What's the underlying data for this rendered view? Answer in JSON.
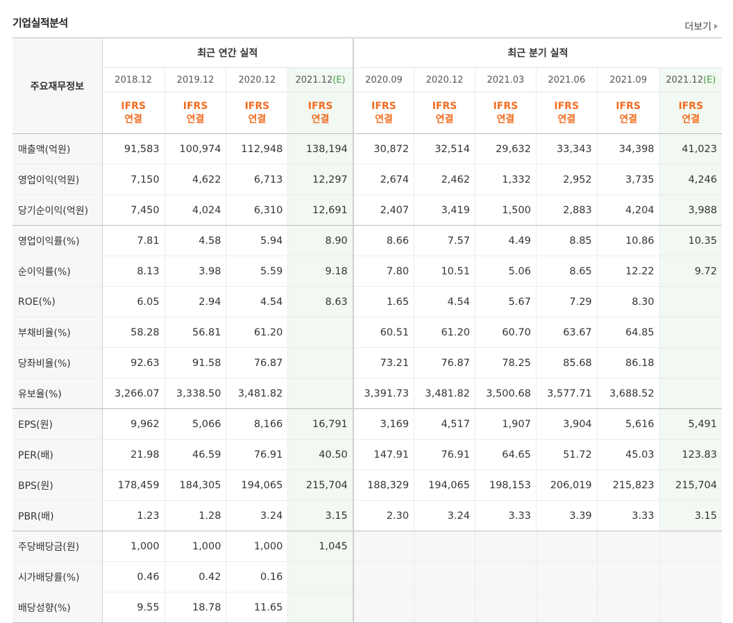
{
  "section_title": "기업실적분석",
  "more_label": "더보기",
  "row_header_label": "주요재무정보",
  "annual_header": "최근 연간 실적",
  "quarter_header": "최근 분기 실적",
  "ifrs_line1": "IFRS",
  "ifrs_line2": "연결",
  "annual_periods": [
    "2018.12",
    "2019.12",
    "2020.12",
    "2021.12"
  ],
  "quarter_periods": [
    "2020.09",
    "2020.12",
    "2021.03",
    "2021.06",
    "2021.09",
    "2021.12"
  ],
  "estimate_mark": "(E)",
  "rows": [
    {
      "label": "매출액(억원)",
      "values": [
        "91,583",
        "100,974",
        "112,948",
        "138,194",
        "30,872",
        "32,514",
        "29,632",
        "33,343",
        "34,398",
        "41,023"
      ]
    },
    {
      "label": "영업이익(억원)",
      "values": [
        "7,150",
        "4,622",
        "6,713",
        "12,297",
        "2,674",
        "2,462",
        "1,332",
        "2,952",
        "3,735",
        "4,246"
      ]
    },
    {
      "label": "당기순이익(억원)",
      "values": [
        "7,450",
        "4,024",
        "6,310",
        "12,691",
        "2,407",
        "3,419",
        "1,500",
        "2,883",
        "4,204",
        "3,988"
      ]
    },
    {
      "label": "영업이익률(%)",
      "values": [
        "7.81",
        "4.58",
        "5.94",
        "8.90",
        "8.66",
        "7.57",
        "4.49",
        "8.85",
        "10.86",
        "10.35"
      ]
    },
    {
      "label": "순이익률(%)",
      "values": [
        "8.13",
        "3.98",
        "5.59",
        "9.18",
        "7.80",
        "10.51",
        "5.06",
        "8.65",
        "12.22",
        "9.72"
      ]
    },
    {
      "label": "ROE(%)",
      "values": [
        "6.05",
        "2.94",
        "4.54",
        "8.63",
        "1.65",
        "4.54",
        "5.67",
        "7.29",
        "8.30",
        ""
      ]
    },
    {
      "label": "부채비율(%)",
      "values": [
        "58.28",
        "56.81",
        "61.20",
        "",
        "60.51",
        "61.20",
        "60.70",
        "63.67",
        "64.85",
        ""
      ]
    },
    {
      "label": "당좌비율(%)",
      "values": [
        "92.63",
        "91.58",
        "76.87",
        "",
        "73.21",
        "76.87",
        "78.25",
        "85.68",
        "86.18",
        ""
      ]
    },
    {
      "label": "유보율(%)",
      "values": [
        "3,266.07",
        "3,338.50",
        "3,481.82",
        "",
        "3,391.73",
        "3,481.82",
        "3,500.68",
        "3,577.71",
        "3,688.52",
        ""
      ]
    },
    {
      "label": "EPS(원)",
      "values": [
        "9,962",
        "5,066",
        "8,166",
        "16,791",
        "3,169",
        "4,517",
        "1,907",
        "3,904",
        "5,616",
        "5,491"
      ]
    },
    {
      "label": "PER(배)",
      "values": [
        "21.98",
        "46.59",
        "76.91",
        "40.50",
        "147.91",
        "76.91",
        "64.65",
        "51.72",
        "45.03",
        "123.83"
      ]
    },
    {
      "label": "BPS(원)",
      "values": [
        "178,459",
        "184,305",
        "194,065",
        "215,704",
        "188,329",
        "194,065",
        "198,153",
        "206,019",
        "215,823",
        "215,704"
      ]
    },
    {
      "label": "PBR(배)",
      "values": [
        "1.23",
        "1.28",
        "3.24",
        "3.15",
        "2.30",
        "3.24",
        "3.33",
        "3.39",
        "3.33",
        "3.15"
      ]
    },
    {
      "label": "주당배당금(원)",
      "values": [
        "1,000",
        "1,000",
        "1,000",
        "1,045",
        "",
        "",
        "",
        "",
        "",
        ""
      ]
    },
    {
      "label": "시가배당률(%)",
      "values": [
        "0.46",
        "0.42",
        "0.16",
        "",
        "",
        "",
        "",
        "",
        "",
        ""
      ]
    },
    {
      "label": "배당성향(%)",
      "values": [
        "9.55",
        "18.78",
        "11.65",
        "",
        "",
        "",
        "",
        "",
        "",
        ""
      ]
    }
  ],
  "group_end_rows": [
    2,
    8,
    12
  ],
  "blank_quarter_from_row": 13
}
